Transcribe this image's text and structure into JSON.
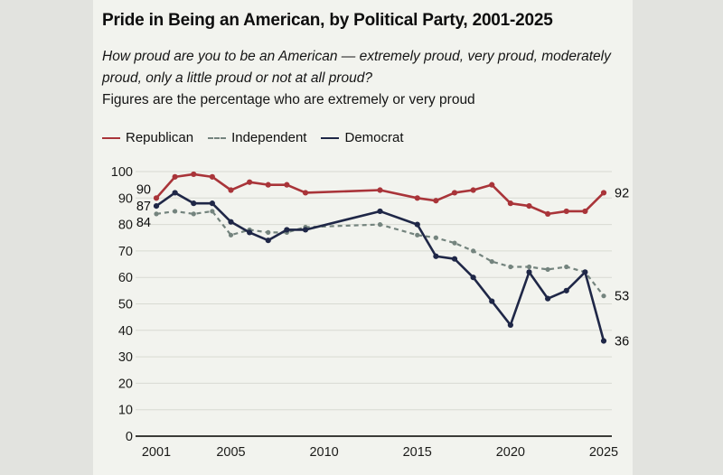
{
  "header": {
    "title": "Pride in Being an American, by Political Party, 2001-2025",
    "question": "How proud are you to be an American — extremely proud, very proud, moderately proud, only a little proud or not at all proud?",
    "note": "Figures are the percentage who are extremely or very proud"
  },
  "legend": [
    {
      "label": "Republican",
      "color": "#a93439",
      "style": "solid"
    },
    {
      "label": "Independent",
      "color": "#74847e",
      "style": "dashed"
    },
    {
      "label": "Democrat",
      "color": "#1f2747",
      "style": "solid"
    }
  ],
  "colors": {
    "republican": "#a93439",
    "independent": "#74847e",
    "democrat": "#1f2747",
    "grid": "#d8dad2",
    "axis": "#3c3c38",
    "text": "#1b1b19",
    "card_bg": "#f2f3ee",
    "page_bg": "#e2e3df"
  },
  "chart_data": {
    "type": "line",
    "x": [
      2001,
      2002,
      2003,
      2004,
      2005,
      2006,
      2007,
      2008,
      2009,
      2013,
      2015,
      2016,
      2017,
      2018,
      2019,
      2020,
      2021,
      2022,
      2023,
      2024,
      2025
    ],
    "xticks": [
      2001,
      2005,
      2010,
      2015,
      2020,
      2025
    ],
    "yticks": [
      0,
      10,
      20,
      30,
      40,
      50,
      60,
      70,
      80,
      90,
      100
    ],
    "ylim": [
      0,
      100
    ],
    "xlim": [
      2001,
      2025
    ],
    "grid": "horizontal",
    "legend_position": "top",
    "title": "Pride in Being an American, by Political Party, 2001-2025",
    "series": [
      {
        "name": "Republican",
        "color": "#a93439",
        "dash": null,
        "point_r": 3.1,
        "values": [
          90,
          98,
          99,
          98,
          93,
          96,
          95,
          95,
          92,
          93,
          90,
          89,
          92,
          93,
          95,
          88,
          87,
          84,
          85,
          85,
          92
        ]
      },
      {
        "name": "Independent",
        "color": "#74847e",
        "dash": "5,4",
        "point_r": 2.6,
        "values": [
          84,
          85,
          84,
          85,
          76,
          78,
          77,
          77,
          79,
          80,
          76,
          75,
          73,
          70,
          66,
          64,
          64,
          63,
          64,
          62,
          53
        ]
      },
      {
        "name": "Democrat",
        "color": "#1f2747",
        "dash": null,
        "point_r": 3.1,
        "values": [
          87,
          92,
          88,
          88,
          81,
          77,
          74,
          78,
          78,
          85,
          80,
          68,
          67,
          60,
          51,
          42,
          62,
          52,
          55,
          62,
          36
        ]
      }
    ],
    "edge_labels": {
      "left": [
        {
          "text": "90",
          "value": 90
        },
        {
          "text": "87",
          "value": 87
        },
        {
          "text": "84",
          "value": 84
        }
      ],
      "right": [
        {
          "text": "92",
          "value": 92
        },
        {
          "text": "53",
          "value": 53
        },
        {
          "text": "36",
          "value": 36
        }
      ]
    }
  }
}
